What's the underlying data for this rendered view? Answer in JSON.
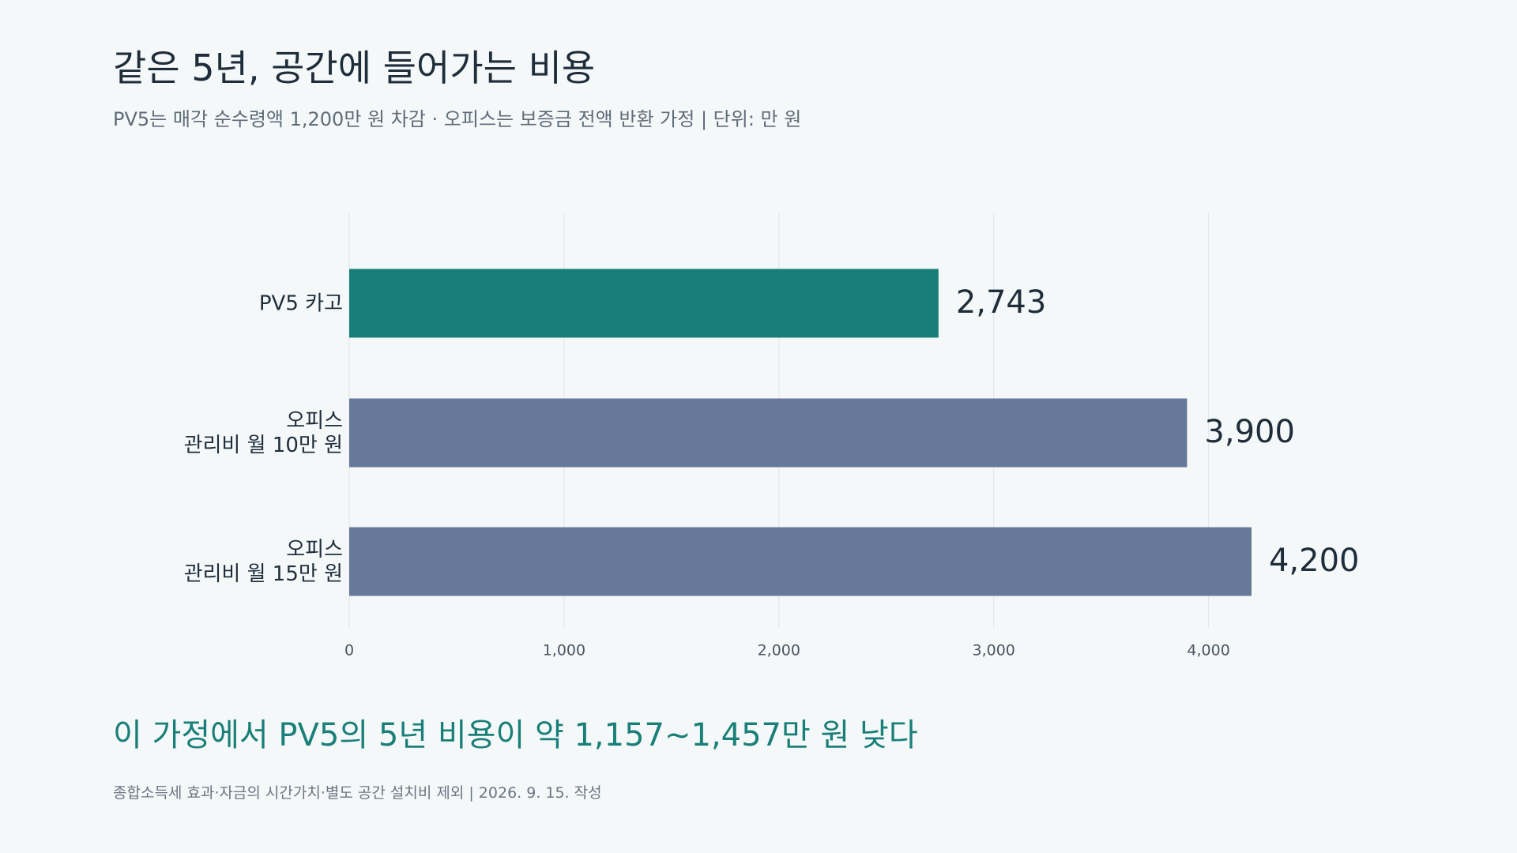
{
  "title": "같은 5년, 공간에 들어가는 비용",
  "subtitle": "PV5는 매각 순수령액 1,200만 원 차감 · 오피스는 보증금 전액 반환 가정  |  단위: 만 원",
  "conclusion": "이 가정에서 PV5의 5년 비용이 약 1,157~1,457만 원 낮다",
  "footnote": "종합소득세 효과·자금의 시간가치·별도 공간 설치비 제외  |  2026. 9. 15. 작성",
  "chart_data": {
    "type": "bar",
    "orientation": "horizontal",
    "categories": [
      [
        "PV5 카고"
      ],
      [
        "오피스",
        "관리비 월 10만 원"
      ],
      [
        "오피스",
        "관리비 월 15만 원"
      ]
    ],
    "values": [
      2743,
      3900,
      4200
    ],
    "value_labels": [
      "2,743",
      "3,900",
      "4,200"
    ],
    "bar_colors": [
      "#177f78",
      "#667998"
    ],
    "xlim": [
      0,
      4200
    ],
    "x_ticks": [
      0,
      1000,
      2000,
      3000,
      4000
    ],
    "x_tick_labels": [
      "0",
      "1,000",
      "2,000",
      "3,000",
      "4,000"
    ],
    "grid": true
  }
}
